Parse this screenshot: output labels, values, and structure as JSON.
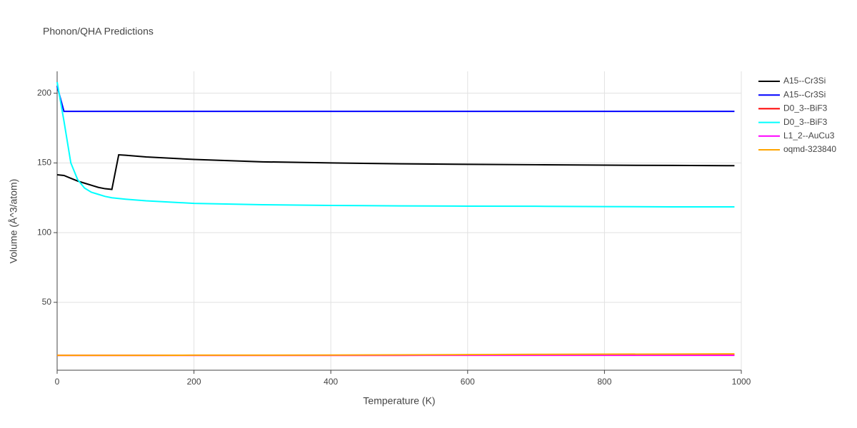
{
  "chart_data": {
    "type": "line",
    "title": "Phonon/QHA Predictions",
    "x_label": "Temperature (K)",
    "y_label": "Volume (Å^3/atom)",
    "x": [
      0,
      10,
      20,
      30,
      40,
      50,
      60,
      70,
      80,
      90,
      100,
      130,
      200,
      300,
      400,
      500,
      600,
      700,
      800,
      900,
      990
    ],
    "series": [
      {
        "name": "A15--Cr3Si",
        "color": "#000000",
        "values": [
          141.5,
          141,
          139,
          137,
          135.5,
          134,
          132.5,
          131.5,
          131,
          155.8,
          155.5,
          154.3,
          152.5,
          150.8,
          150,
          149.4,
          149,
          148.7,
          148.4,
          148.2,
          148
        ]
      },
      {
        "name": "A15--Cr3Si",
        "color": "#0000ff",
        "values": [
          205,
          187,
          187,
          187,
          187,
          187,
          187,
          187,
          187,
          187,
          187,
          187,
          187,
          187,
          187,
          187,
          187,
          187,
          187,
          187,
          187
        ]
      },
      {
        "name": "D0_3--BiF3",
        "color": "#ff0000",
        "values": [
          12,
          12,
          12,
          12,
          12,
          12,
          12,
          12,
          12,
          12,
          12,
          12,
          12,
          12,
          12,
          12,
          12.1,
          12.2,
          12.3,
          12.4,
          12.5
        ]
      },
      {
        "name": "D0_3--BiF3",
        "color": "#00ffff",
        "values": [
          208,
          180,
          150,
          138,
          132,
          129,
          127.5,
          126,
          125,
          124.5,
          124,
          122.8,
          121,
          120,
          119.5,
          119.2,
          119,
          118.9,
          118.7,
          118.5,
          118.5
        ]
      },
      {
        "name": "L1_2--AuCu3",
        "color": "#ff00ff",
        "values": [
          12,
          12,
          12,
          12,
          12,
          12,
          12,
          12,
          12,
          12,
          12,
          12,
          12,
          12,
          12,
          12,
          12,
          12,
          12,
          12,
          12
        ]
      },
      {
        "name": "oqmd-323840",
        "color": "#ffa500",
        "values": [
          12,
          12,
          12,
          12,
          12,
          12,
          12,
          12,
          12,
          12,
          12,
          12,
          12.1,
          12.1,
          12.2,
          12.3,
          12.5,
          12.7,
          12.8,
          12.9,
          13
        ]
      }
    ],
    "xlim": [
      0,
      1000
    ],
    "xticks": [
      0,
      200,
      400,
      600,
      800,
      1000
    ],
    "ylim": [
      1.3,
      215.7
    ],
    "yticks": [
      50,
      100,
      150,
      200
    ],
    "grid": true,
    "legend": "right"
  }
}
